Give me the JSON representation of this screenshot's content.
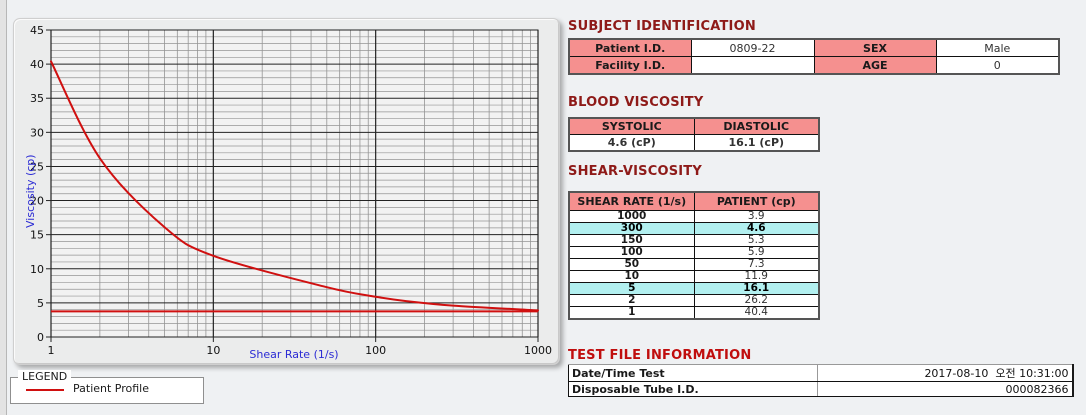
{
  "colors": {
    "header_pink": "#F5908F",
    "highlight_cyan": "#B2F0F0",
    "title_maroon": "#8E1A18",
    "title_red": "#C00E0E",
    "curve_red": "#D01010",
    "axis_blue": "#2B2BD4"
  },
  "chart_data": {
    "type": "line",
    "title": "",
    "xlabel": "Shear Rate (1/s)",
    "ylabel": "Viscosity (cp)",
    "x_scale": "log",
    "xlim": [
      1,
      1000
    ],
    "ylim": [
      0,
      45
    ],
    "x_ticks": [
      1,
      10,
      100,
      1000
    ],
    "y_tick_step": 5,
    "y_minor_step": 1,
    "grid": "on",
    "legend_position": "bottom-left",
    "reference_hline": 3.75,
    "series": [
      {
        "name": "Patient Profile",
        "color": "#D01010",
        "x": [
          1,
          2,
          5,
          10,
          50,
          100,
          150,
          300,
          1000
        ],
        "y": [
          40.4,
          26.2,
          16.1,
          11.9,
          7.3,
          5.9,
          5.3,
          4.6,
          3.9
        ]
      }
    ]
  },
  "legend": {
    "box_label": "LEGEND",
    "series_label": "Patient Profile"
  },
  "subject": {
    "title": "SUBJECT IDENTIFICATION",
    "rows": [
      {
        "label": "Patient I.D.",
        "value": "0809-22",
        "label2": "SEX",
        "value2": "Male"
      },
      {
        "label": "Facility I.D.",
        "value": "",
        "label2": "AGE",
        "value2": "0"
      }
    ]
  },
  "blood": {
    "title": "BLOOD VISCOSITY",
    "headers": [
      "SYSTOLIC",
      "DIASTOLIC"
    ],
    "values": [
      "4.6 (cP)",
      "16.1 (cP)"
    ]
  },
  "shear": {
    "title": "SHEAR-VISCOSITY",
    "headers": [
      "SHEAR RATE (1/s)",
      "PATIENT (cp)"
    ],
    "rows": [
      {
        "rate": "1000",
        "value": "3.9",
        "highlight": false
      },
      {
        "rate": "300",
        "value": "4.6",
        "highlight": true
      },
      {
        "rate": "150",
        "value": "5.3",
        "highlight": false
      },
      {
        "rate": "100",
        "value": "5.9",
        "highlight": false
      },
      {
        "rate": "50",
        "value": "7.3",
        "highlight": false
      },
      {
        "rate": "10",
        "value": "11.9",
        "highlight": false
      },
      {
        "rate": "5",
        "value": "16.1",
        "highlight": true
      },
      {
        "rate": "2",
        "value": "26.2",
        "highlight": false
      },
      {
        "rate": "1",
        "value": "40.4",
        "highlight": false
      }
    ]
  },
  "test_file": {
    "title": "TEST FILE INFORMATION",
    "rows": [
      {
        "label": "Date/Time Test",
        "value": "2017-08-10  오전 10:31:00"
      },
      {
        "label": "Disposable Tube I.D.",
        "value": "000082366"
      }
    ]
  }
}
